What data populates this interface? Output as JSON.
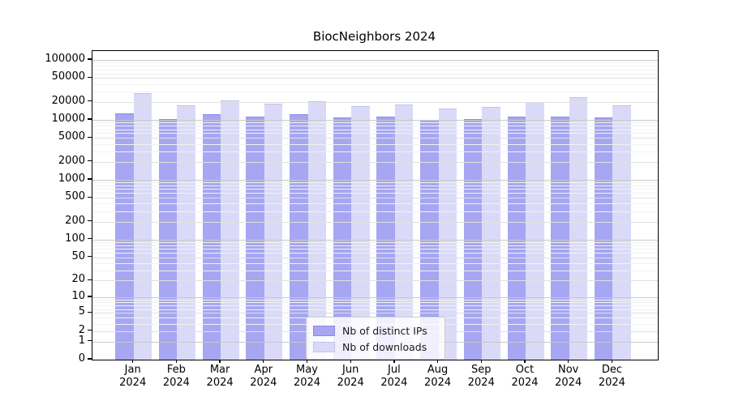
{
  "title": "BiocNeighbors 2024",
  "chart_data": {
    "type": "bar",
    "title": "BiocNeighbors 2024",
    "categories": [
      "Jan 2024",
      "Feb 2024",
      "Mar 2024",
      "Apr 2024",
      "May 2024",
      "Jun 2024",
      "Jul 2024",
      "Aug 2024",
      "Sep 2024",
      "Oct 2024",
      "Nov 2024",
      "Dec 2024"
    ],
    "x_tick_labels": [
      {
        "month": "Jan",
        "year": "2024"
      },
      {
        "month": "Feb",
        "year": "2024"
      },
      {
        "month": "Mar",
        "year": "2024"
      },
      {
        "month": "Apr",
        "year": "2024"
      },
      {
        "month": "May",
        "year": "2024"
      },
      {
        "month": "Jun",
        "year": "2024"
      },
      {
        "month": "Jul",
        "year": "2024"
      },
      {
        "month": "Aug",
        "year": "2024"
      },
      {
        "month": "Sep",
        "year": "2024"
      },
      {
        "month": "Oct",
        "year": "2024"
      },
      {
        "month": "Nov",
        "year": "2024"
      },
      {
        "month": "Dec",
        "year": "2024"
      }
    ],
    "series": [
      {
        "name": "Nb of distinct IPs",
        "color": "#a6a6f2",
        "edge_color": "#8a8ae0",
        "values": [
          12900,
          10200,
          12300,
          11300,
          12300,
          10900,
          11400,
          9900,
          10300,
          11200,
          11300,
          11100
        ]
      },
      {
        "name": "Nb of downloads",
        "color": "#dadaf8",
        "edge_color": "#c2c2ec",
        "values": [
          28300,
          17800,
          21100,
          18800,
          20400,
          16800,
          18100,
          15700,
          16600,
          20100,
          23600,
          17800
        ]
      }
    ],
    "y_axis": {
      "scale": "log10(1+x)",
      "tick_values": [
        100000,
        50000,
        20000,
        10000,
        5000,
        2000,
        1000,
        500,
        200,
        100,
        50,
        20,
        10,
        5,
        2,
        1,
        0
      ],
      "ylim": [
        0,
        141000
      ]
    },
    "grid": {
      "on": true,
      "power10_color": "#c9c9c9",
      "major_color": "#e0e0e0",
      "minor_color": "#f1f1f1"
    },
    "legend_position": "lower center"
  }
}
